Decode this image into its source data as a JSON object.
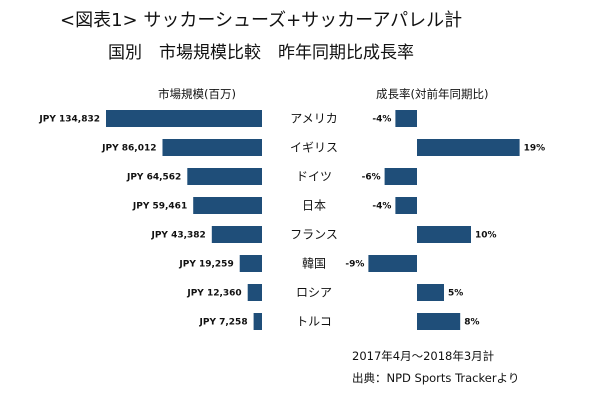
{
  "header": {
    "title": "<図表1> サッカーシューズ+サッカーアパレル計",
    "subtitle": "国別　市場規模比較　昨年同期比成長率"
  },
  "footer": {
    "period": "2017年4月～2018年3月計",
    "source": "出典：NPD Sports Trackerより"
  },
  "colors": {
    "bar": "#1f4e79"
  },
  "chart_data": [
    {
      "type": "bar",
      "orientation": "horizontal",
      "direction": "leftward",
      "title": "市場規模(百万)",
      "categories": [
        "アメリカ",
        "イギリス",
        "ドイツ",
        "日本",
        "フランス",
        "韓国",
        "ロシア",
        "トルコ"
      ],
      "values": [
        134832,
        86012,
        64562,
        59461,
        43382,
        19259,
        12360,
        7258
      ],
      "labels": [
        "JPY 134,832",
        "JPY 86,012",
        "JPY 64,562",
        "JPY 59,461",
        "JPY 43,382",
        "JPY 19,259",
        "JPY 12,360",
        "JPY 7,258"
      ],
      "xlim": [
        0,
        134832
      ]
    },
    {
      "type": "bar",
      "orientation": "horizontal",
      "title": "成長率(対前年同期比)",
      "categories": [
        "アメリカ",
        "イギリス",
        "ドイツ",
        "日本",
        "フランス",
        "韓国",
        "ロシア",
        "トルコ"
      ],
      "values": [
        -4,
        19,
        -6,
        -4,
        10,
        -9,
        5,
        8
      ],
      "labels": [
        "-4%",
        "19%",
        "-6%",
        "-4%",
        "10%",
        "-9%",
        "5%",
        "8%"
      ],
      "xlim": [
        -9,
        19
      ]
    }
  ]
}
